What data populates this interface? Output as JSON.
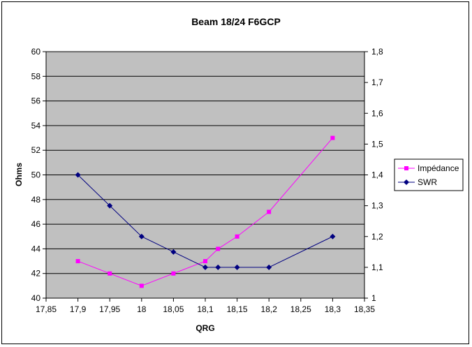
{
  "chart_data": {
    "type": "line",
    "title": "Beam 18/24 F6GCP",
    "xlabel": "QRG",
    "ylabel": "Ohms",
    "y2label": "",
    "xlim": [
      17.85,
      18.35
    ],
    "x_ticks": [
      "17,85",
      "17,9",
      "17,95",
      "18",
      "18,05",
      "18,1",
      "18,15",
      "18,2",
      "18,25",
      "18,3",
      "18,35"
    ],
    "x_tick_values": [
      17.85,
      17.9,
      17.95,
      18.0,
      18.05,
      18.1,
      18.15,
      18.2,
      18.25,
      18.3,
      18.35
    ],
    "ylim": [
      40,
      60
    ],
    "y_ticks": [
      "40",
      "42",
      "44",
      "46",
      "48",
      "50",
      "52",
      "54",
      "56",
      "58",
      "60"
    ],
    "y_tick_values": [
      40,
      42,
      44,
      46,
      48,
      50,
      52,
      54,
      56,
      58,
      60
    ],
    "y2lim": [
      1.0,
      1.8
    ],
    "y2_ticks": [
      "1",
      "1,1",
      "1,2",
      "1,3",
      "1,4",
      "1,5",
      "1,6",
      "1,7",
      "1,8"
    ],
    "y2_tick_values": [
      1.0,
      1.1,
      1.2,
      1.3,
      1.4,
      1.5,
      1.6,
      1.7,
      1.8
    ],
    "grid": "horizontal",
    "legend_position": "right",
    "series": [
      {
        "name": "Impédance",
        "axis": "left",
        "color": "#ff00ff",
        "marker": "square",
        "x": [
          17.9,
          17.95,
          18.0,
          18.05,
          18.1,
          18.12,
          18.15,
          18.2,
          18.3
        ],
        "y": [
          43,
          42,
          41,
          42,
          43,
          44,
          45,
          47,
          53
        ]
      },
      {
        "name": "SWR",
        "axis": "right",
        "color": "#000080",
        "marker": "diamond",
        "x": [
          17.9,
          17.95,
          18.0,
          18.05,
          18.1,
          18.12,
          18.15,
          18.2,
          18.3
        ],
        "y": [
          1.4,
          1.3,
          1.2,
          1.15,
          1.1,
          1.1,
          1.1,
          1.1,
          1.2
        ]
      }
    ]
  }
}
